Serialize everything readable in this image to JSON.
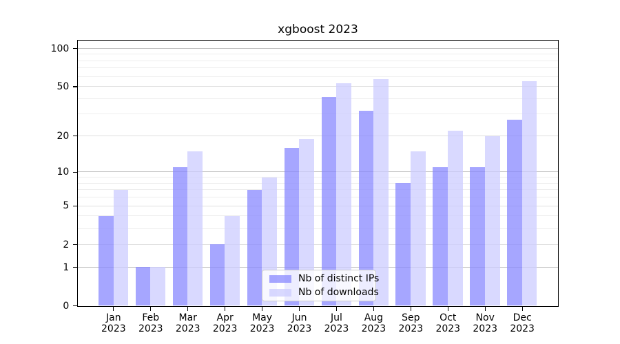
{
  "title": "xgboost 2023",
  "chart_data": {
    "type": "bar",
    "title": "xgboost 2023",
    "categories": [
      "Jan 2023",
      "Feb 2023",
      "Mar 2023",
      "Apr 2023",
      "May 2023",
      "Jun 2023",
      "Jul 2023",
      "Aug 2023",
      "Sep 2023",
      "Oct 2023",
      "Nov 2023",
      "Dec 2023"
    ],
    "series": [
      {
        "name": "Nb of distinct IPs",
        "color": "#8888ff",
        "alpha": 0.75,
        "values": [
          4,
          1,
          11,
          2,
          7,
          16,
          41,
          32,
          8,
          11,
          11,
          27
        ]
      },
      {
        "name": "Nb of downloads",
        "color": "#ccccff",
        "alpha": 0.75,
        "values": [
          7,
          1,
          15,
          4,
          9,
          19,
          53,
          57,
          15,
          22,
          20,
          55
        ]
      }
    ],
    "xlabel": "",
    "ylabel": "",
    "yscale": "log1p",
    "ylim": [
      0,
      115
    ],
    "yticks": [
      0,
      1,
      2,
      5,
      10,
      20,
      50,
      100
    ],
    "grid": true,
    "gridlines": {
      "major": [
        1,
        10,
        100
      ],
      "mid": [
        2,
        5,
        20,
        50
      ],
      "minor": [
        3,
        4,
        6,
        7,
        8,
        9,
        30,
        40,
        60,
        70,
        80,
        90
      ]
    },
    "legend_position": "lower center"
  }
}
